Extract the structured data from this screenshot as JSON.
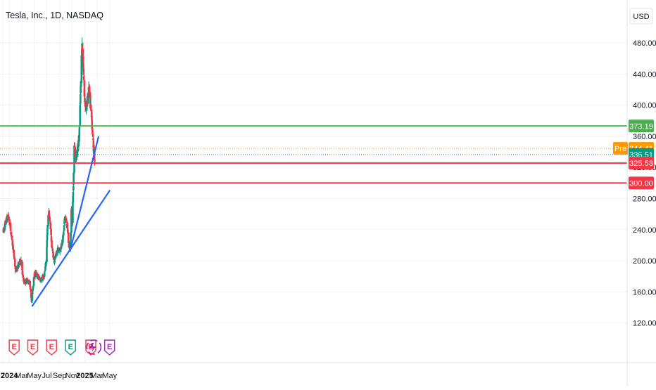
{
  "header": {
    "symbol_title": "Tesla, Inc., 1D, NASDAQ"
  },
  "price_scale": {
    "currency": "USD"
  },
  "colors": {
    "up": "#089981",
    "down": "#f23645",
    "trendline": "#2962ff",
    "level_green": "#4caf50",
    "level_red": "#f23645",
    "pre_badge": "#ff9800",
    "current_badge": "#089981",
    "grid": "#f0f3fa",
    "earnings_red": "#f23645",
    "earnings_green": "#089981",
    "earnings_purple": "#9c27b0"
  },
  "chart_data": {
    "type": "candlestick",
    "ylim": [
      100,
      500
    ],
    "y_ticks": [
      "480.00",
      "440.00",
      "400.00",
      "360.00",
      "320.00",
      "280.00",
      "240.00",
      "200.00",
      "160.00",
      "120.00"
    ],
    "x_ticks": [
      {
        "label": "7",
        "date": "2023-12-01",
        "bold": false
      },
      {
        "label": "2024",
        "date": "2024-01-01",
        "bold": true
      },
      {
        "label": "Mar",
        "date": "2024-03-01",
        "bold": false
      },
      {
        "label": "May",
        "date": "2024-05-01",
        "bold": false
      },
      {
        "label": "Jul",
        "date": "2024-07-01",
        "bold": false
      },
      {
        "label": "Sep",
        "date": "2024-09-01",
        "bold": false
      },
      {
        "label": "Nov",
        "date": "2024-11-01",
        "bold": false
      },
      {
        "label": "2025",
        "date": "2025-01-01",
        "bold": true
      },
      {
        "label": "Mar",
        "date": "2025-03-01",
        "bold": false
      },
      {
        "label": "May",
        "date": "2025-05-01",
        "bold": false
      }
    ],
    "price_path": [
      [
        "2023-12-04",
        238
      ],
      [
        "2023-12-18",
        252
      ],
      [
        "2023-12-28",
        258
      ],
      [
        "2024-01-08",
        240
      ],
      [
        "2024-01-22",
        212
      ],
      [
        "2024-01-31",
        188
      ],
      [
        "2024-02-12",
        192
      ],
      [
        "2024-02-20",
        198
      ],
      [
        "2024-02-28",
        202
      ],
      [
        "2024-03-06",
        180
      ],
      [
        "2024-03-15",
        172
      ],
      [
        "2024-03-28",
        175
      ],
      [
        "2024-04-10",
        171
      ],
      [
        "2024-04-19",
        147
      ],
      [
        "2024-04-29",
        180
      ],
      [
        "2024-05-08",
        184
      ],
      [
        "2024-05-22",
        178
      ],
      [
        "2024-06-05",
        176
      ],
      [
        "2024-06-18",
        180
      ],
      [
        "2024-06-28",
        200
      ],
      [
        "2024-07-05",
        245
      ],
      [
        "2024-07-10",
        262
      ],
      [
        "2024-07-18",
        248
      ],
      [
        "2024-07-24",
        222
      ],
      [
        "2024-08-05",
        200
      ],
      [
        "2024-08-14",
        205
      ],
      [
        "2024-08-22",
        214
      ],
      [
        "2024-09-04",
        215
      ],
      [
        "2024-09-18",
        230
      ],
      [
        "2024-09-27",
        258
      ],
      [
        "2024-10-09",
        242
      ],
      [
        "2024-10-15",
        220
      ],
      [
        "2024-10-23",
        218
      ],
      [
        "2024-10-28",
        262
      ],
      [
        "2024-11-01",
        250
      ],
      [
        "2024-11-06",
        290
      ],
      [
        "2024-11-11",
        345
      ],
      [
        "2024-11-18",
        335
      ],
      [
        "2024-11-26",
        340
      ],
      [
        "2024-12-05",
        360
      ],
      [
        "2024-12-12",
        420
      ],
      [
        "2024-12-18",
        480
      ],
      [
        "2024-12-24",
        455
      ],
      [
        "2024-12-30",
        410
      ],
      [
        "2025-01-08",
        395
      ],
      [
        "2025-01-15",
        410
      ],
      [
        "2025-01-22",
        420
      ],
      [
        "2025-01-28",
        400
      ],
      [
        "2025-02-04",
        380
      ],
      [
        "2025-02-12",
        345
      ],
      [
        "2025-02-18",
        330
      ]
    ],
    "horizontal_levels": [
      {
        "value": 373.19,
        "label": "373.19",
        "color": "#4caf50",
        "style": "solid"
      },
      {
        "value": 344.41,
        "label": "344.41",
        "color": "#ff9800",
        "style": "dotted",
        "tag": "Pre"
      },
      {
        "value": 336.51,
        "label": "336.51",
        "color": "#089981",
        "style": "dotted"
      },
      {
        "value": 325.53,
        "label": "325.53",
        "color": "#f23645",
        "style": "solid"
      },
      {
        "value": 300.0,
        "label": "300.00",
        "color": "#f23645",
        "style": "solid"
      }
    ],
    "trendlines": [
      {
        "x1": "2024-04-22",
        "y1": 142,
        "x2": "2025-05-01",
        "y2": 290
      },
      {
        "x1": "2024-10-22",
        "y1": 213,
        "x2": "2025-03-08",
        "y2": 359
      }
    ],
    "earnings_markers": [
      {
        "date": "2024-01-25",
        "letter": "E",
        "color": "#f23645"
      },
      {
        "date": "2024-04-24",
        "letter": "E",
        "color": "#f23645"
      },
      {
        "date": "2024-07-24",
        "letter": "E",
        "color": "#f23645"
      },
      {
        "date": "2024-10-24",
        "letter": "E",
        "color": "#089981"
      },
      {
        "date": "2025-01-30",
        "letter": "E",
        "color": "#f23645"
      },
      {
        "date": "2025-05-01",
        "letter": "E",
        "color": "#9c27b0"
      }
    ]
  }
}
